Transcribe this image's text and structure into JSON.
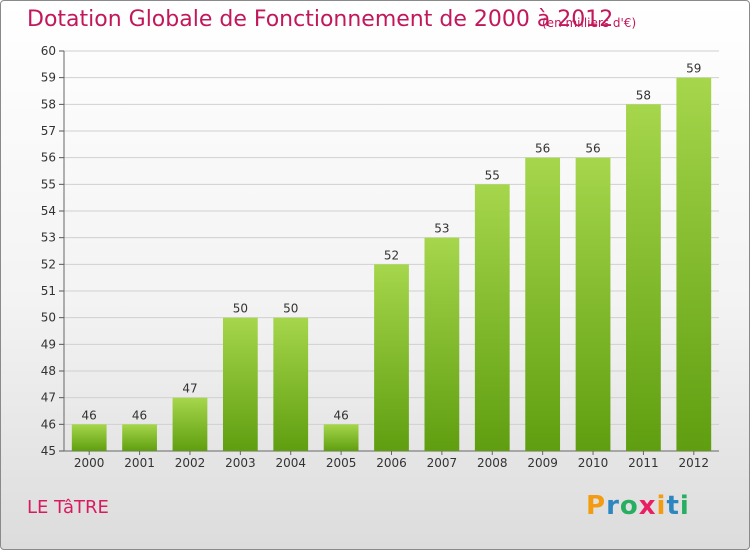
{
  "header": {
    "title": "Dotation Globale de Fonctionnement de 2000 à 2012",
    "subtitle": "(en milliers d'€)"
  },
  "footer": {
    "commune": "LE TâTRE",
    "logo_letters": [
      "P",
      "r",
      "o",
      "x",
      "i",
      "t",
      "i"
    ],
    "logo_colors": [
      "#f39c12",
      "#2e86c1",
      "#27ae60",
      "#e91e63",
      "#f39c12",
      "#2e86c1",
      "#27ae60"
    ]
  },
  "colors": {
    "bar_light": "#a6d64b",
    "bar_dark": "#5f9e10",
    "title": "#c2185b",
    "grid": "#d0d0d0"
  },
  "chart_data": {
    "type": "bar",
    "categories": [
      "2000",
      "2001",
      "2002",
      "2003",
      "2004",
      "2005",
      "2006",
      "2007",
      "2008",
      "2009",
      "2010",
      "2011",
      "2012"
    ],
    "values": [
      46,
      46,
      47,
      50,
      50,
      46,
      52,
      53,
      55,
      56,
      56,
      58,
      59
    ],
    "ylim": [
      45,
      60
    ],
    "yticks": [
      45,
      46,
      47,
      48,
      49,
      50,
      51,
      52,
      53,
      54,
      55,
      56,
      57,
      58,
      59,
      60
    ],
    "grid": true
  }
}
